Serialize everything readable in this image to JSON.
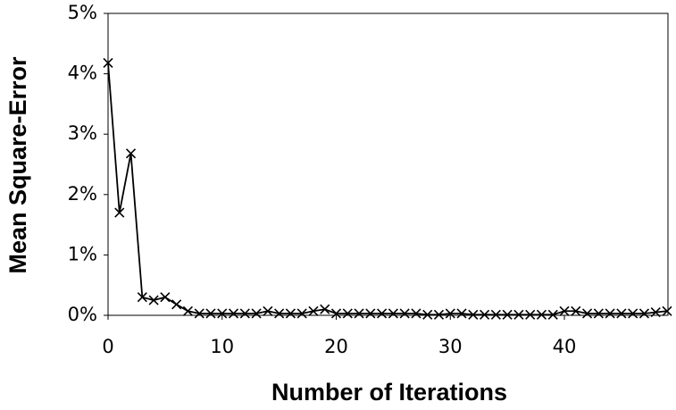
{
  "chart_data": {
    "type": "line",
    "xlabel": "Number of Iterations",
    "ylabel": "Mean Square-Error",
    "x": [
      0,
      1,
      2,
      3,
      4,
      5,
      6,
      7,
      8,
      9,
      10,
      11,
      12,
      13,
      14,
      15,
      16,
      17,
      18,
      19,
      20,
      21,
      22,
      23,
      24,
      25,
      26,
      27,
      28,
      29,
      30,
      31,
      32,
      33,
      34,
      35,
      36,
      37,
      38,
      39,
      40,
      41,
      42,
      43,
      44,
      45,
      46,
      47,
      48,
      49
    ],
    "values": [
      4.18,
      1.7,
      2.68,
      0.3,
      0.25,
      0.3,
      0.18,
      0.07,
      0.03,
      0.03,
      0.03,
      0.03,
      0.03,
      0.03,
      0.07,
      0.03,
      0.03,
      0.03,
      0.07,
      0.1,
      0.03,
      0.03,
      0.03,
      0.03,
      0.03,
      0.03,
      0.03,
      0.03,
      0.01,
      0.01,
      0.03,
      0.03,
      0.01,
      0.01,
      0.01,
      0.01,
      0.01,
      0.01,
      0.01,
      0.01,
      0.07,
      0.07,
      0.03,
      0.03,
      0.03,
      0.03,
      0.03,
      0.03,
      0.05,
      0.07
    ],
    "color": "#000000",
    "marker": "x",
    "xlim": [
      0,
      49
    ],
    "xticks": [
      0,
      10,
      20,
      30,
      40
    ],
    "ylim": [
      0,
      5
    ],
    "yticks": [
      {
        "value": 0,
        "label": "0%"
      },
      {
        "value": 1,
        "label": "1%"
      },
      {
        "value": 2,
        "label": "2%"
      },
      {
        "value": 3,
        "label": "3%"
      },
      {
        "value": 4,
        "label": "4%"
      },
      {
        "value": 5,
        "label": "5%"
      }
    ],
    "grid": false
  }
}
